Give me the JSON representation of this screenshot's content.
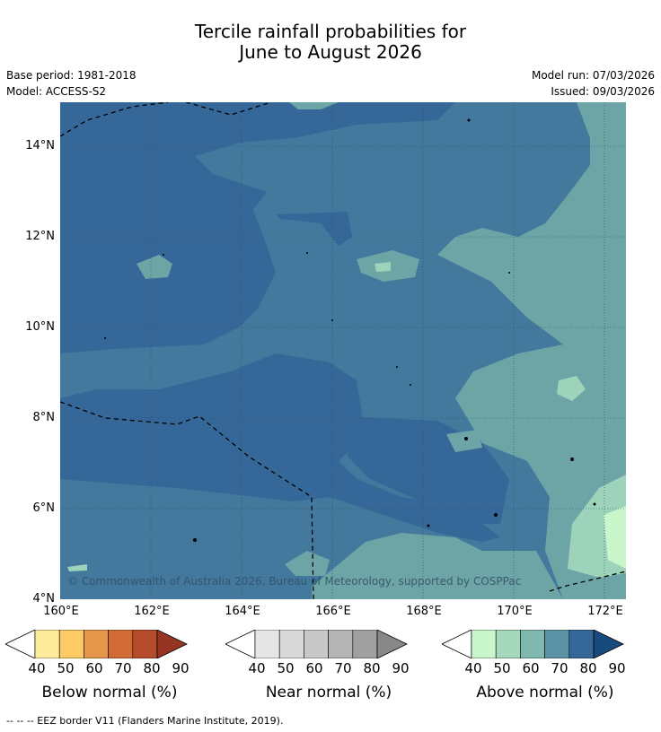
{
  "header": {
    "title_line1": "Tercile rainfall probabilities for",
    "title_line2": "June to August 2026",
    "base_period": "Base period: 1981-2018",
    "model": "Model: ACCESS-S2",
    "model_run": "Model run: 07/03/2026",
    "issued": "Issued: 09/03/2026"
  },
  "map": {
    "copyright": "© Commonwealth of Australia 2026, Bureau of Meteorology, supported by COSPPac",
    "lat_labels": [
      "14°N",
      "12°N",
      "10°N",
      "8°N",
      "6°N",
      "4°N"
    ],
    "lon_labels": [
      "160°E",
      "162°E",
      "164°E",
      "166°E",
      "168°E",
      "170°E",
      "172°E"
    ]
  },
  "colorbars": [
    {
      "label": "Below normal (%)",
      "ticks": [
        "40",
        "50",
        "60",
        "70",
        "80",
        "90"
      ],
      "colors": [
        "#ffeb9c",
        "#fdcb65",
        "#e5964a",
        "#d26a36",
        "#b44b2a",
        "#963523"
      ]
    },
    {
      "label": "Near normal (%)",
      "ticks": [
        "40",
        "50",
        "60",
        "70",
        "80",
        "90"
      ],
      "colors": [
        "#e6e6e6",
        "#d9d9d9",
        "#c8c8c8",
        "#b4b4b4",
        "#a0a0a0",
        "#888888"
      ]
    },
    {
      "label": "Above normal (%)",
      "ticks": [
        "40",
        "50",
        "60",
        "70",
        "80",
        "90"
      ],
      "colors": [
        "#c9f6cb",
        "#a5d8bd",
        "#7fb8ae",
        "#5a91a4",
        "#356898",
        "#184a7e"
      ]
    }
  ],
  "footnote": "--  --  -- EEZ border V11 (Flanders Marine Institute, 2019).",
  "colors": {
    "deep": "#356898",
    "mid": "#42799c",
    "light": "#6da5a7",
    "pale": "#9dd2bb",
    "palest": "#c9f6cb"
  }
}
